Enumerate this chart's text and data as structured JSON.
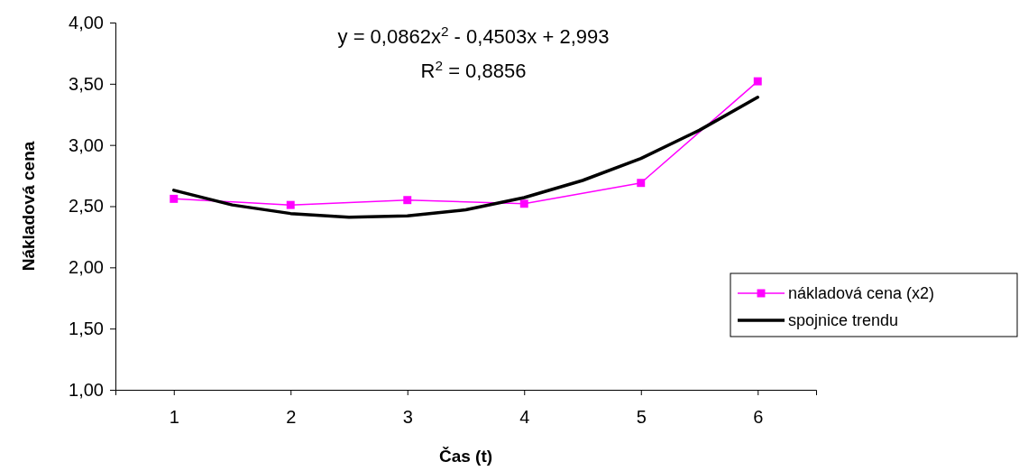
{
  "chart_data": {
    "type": "line",
    "xlabel": "Čas (t)",
    "ylabel": "Nákladová cena",
    "annotations": [
      "y = 0,0862x$^{2}$ - 0,4503x + 2,993",
      "R$^{2}$ = 0,8856"
    ],
    "xlim": [
      0.5,
      6.5
    ],
    "xticks": [
      1,
      2,
      3,
      4,
      5,
      6
    ],
    "ylim": [
      1,
      4
    ],
    "yticks": [
      {
        "value": 1,
        "label": "1,00"
      },
      {
        "value": 1.5,
        "label": "1,50"
      },
      {
        "value": 2,
        "label": "2,00"
      },
      {
        "value": 2.5,
        "label": "2,50"
      },
      {
        "value": 3,
        "label": "3,00"
      },
      {
        "value": 3.5,
        "label": "3,50"
      },
      {
        "value": 4,
        "label": "4,00"
      }
    ],
    "grid": false,
    "legend": "right",
    "series": [
      {
        "name": "nákladová cena (x2)",
        "color": "#ff00ff",
        "marker": "square",
        "x": [
          1,
          2,
          3,
          4,
          5,
          6
        ],
        "values": [
          2.56,
          2.51,
          2.55,
          2.52,
          2.69,
          3.52
        ]
      },
      {
        "name": "spojnice trendu",
        "color": "#000000",
        "marker": "none",
        "x": [
          1,
          1.5,
          2,
          2.5,
          3,
          3.5,
          4,
          4.5,
          5,
          5.5,
          6
        ],
        "values": [
          2.63,
          2.51,
          2.44,
          2.41,
          2.42,
          2.47,
          2.57,
          2.71,
          2.89,
          3.12,
          3.39
        ]
      }
    ]
  }
}
